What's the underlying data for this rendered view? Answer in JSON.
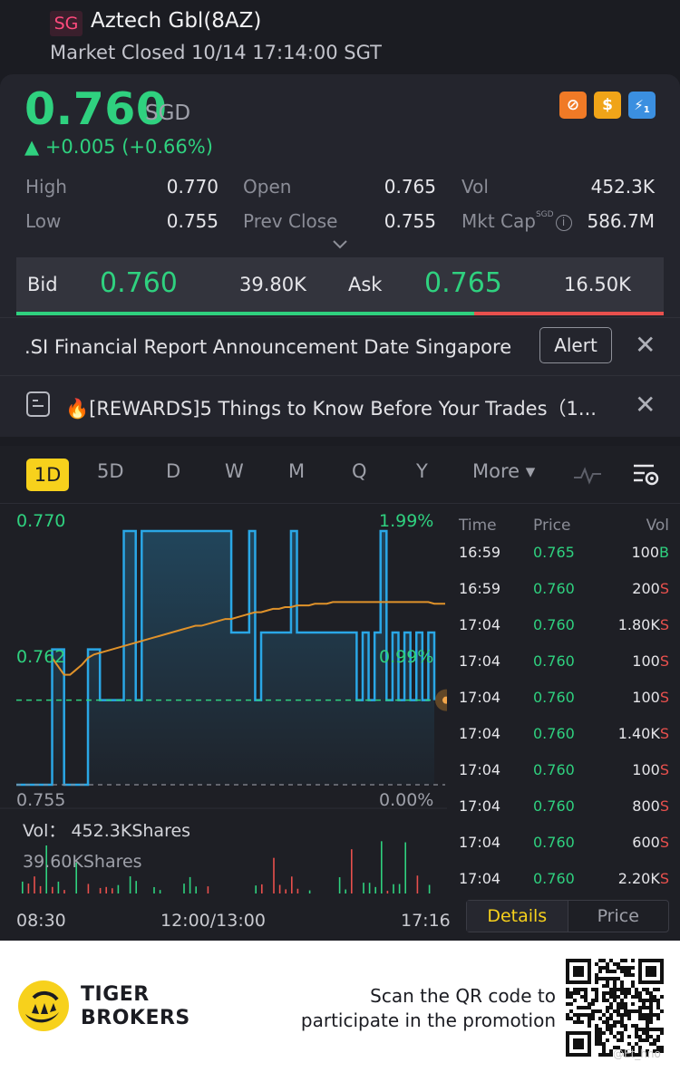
{
  "header": {
    "region_badge": "SG",
    "title": "Aztech Gbl(8AZ)",
    "status": "Market Closed 10/14 17:14:00 SGT"
  },
  "quote": {
    "price": "0.760",
    "currency": "SGD",
    "change": "▲ +0.005 (+0.66%)",
    "icons": [
      "no-short-icon",
      "dollar-icon",
      "lightning-icon"
    ],
    "icon_glyphs": [
      "⊘",
      "$",
      "⚡"
    ],
    "lightning_sub": "1",
    "stats": [
      {
        "label": "High",
        "value": "0.770"
      },
      {
        "label": "Open",
        "value": "0.765"
      },
      {
        "label": "Vol",
        "value": "452.3K"
      },
      {
        "label": "Low",
        "value": "0.755"
      },
      {
        "label": "Prev Close",
        "value": "0.755"
      },
      {
        "label": "Mkt Cap",
        "value": "586.7M"
      }
    ],
    "mktcap_sup": "SGD"
  },
  "bidask": {
    "bid_label": "Bid",
    "bid_price": "0.760",
    "bid_size": "39.80K",
    "ask_label": "Ask",
    "ask_price": "0.765",
    "ask_size": "16.50K",
    "bid_ratio": 0.71
  },
  "notices": {
    "report_text": ".SI Financial Report Announcement Date Singapore",
    "alert_label": "Alert",
    "close_glyph": "✕",
    "rewards_text": "🔥[REWARDS]5 Things to Know Before Your Trades（1..."
  },
  "chart_tabs": {
    "tabs": [
      "1D",
      "5D",
      "D",
      "W",
      "M",
      "Q",
      "Y"
    ],
    "active": "1D",
    "more_label": "More ▾"
  },
  "chart_data": {
    "type": "line",
    "ylim": [
      0.755,
      0.77
    ],
    "y_top_label": "0.770",
    "y_mid_label": "0.762",
    "y_bottom_label": "0.755",
    "pct_top_label": "1.99%",
    "pct_mid_label": "0.99%",
    "pct_bottom_label": "0.00%",
    "prev_close": 0.755,
    "last_price": 0.76,
    "x_labels": [
      "08:30",
      "12:00/13:00",
      "17:16"
    ],
    "series": [
      {
        "values": [
          0.755,
          0.755,
          0.755,
          0.755,
          0.755,
          0.755,
          0.763,
          0.763,
          0.755,
          0.755,
          0.755,
          0.755,
          0.763,
          0.763,
          0.76,
          0.76,
          0.76,
          0.76,
          0.77,
          0.77,
          0.76,
          0.77,
          0.77,
          0.77,
          0.77,
          0.77,
          0.77,
          0.77,
          0.77,
          0.77,
          0.77,
          0.77,
          0.77,
          0.77,
          0.77,
          0.77,
          0.764,
          0.764,
          0.764,
          0.77,
          0.76,
          0.764,
          0.764,
          0.764,
          0.764,
          0.764,
          0.77,
          0.764,
          0.764,
          0.764,
          0.764,
          0.764,
          0.764,
          0.764,
          0.764,
          0.764,
          0.764,
          0.76,
          0.764,
          0.76,
          0.764,
          0.77,
          0.76,
          0.764,
          0.76,
          0.764,
          0.76,
          0.764,
          0.76,
          0.764,
          0.76
        ]
      },
      {
        "values": [
          null,
          null,
          null,
          null,
          null,
          null,
          0.7625,
          0.762,
          0.7615,
          0.7615,
          0.7618,
          0.7621,
          0.7625,
          0.7627,
          0.7628,
          0.7629,
          0.763,
          0.7631,
          0.7632,
          0.7633,
          0.7634,
          0.7635,
          0.7636,
          0.7637,
          0.7638,
          0.7639,
          0.764,
          0.7641,
          0.7642,
          0.7643,
          0.7644,
          0.7644,
          0.7645,
          0.7646,
          0.7647,
          0.7648,
          0.7648,
          0.7649,
          0.765,
          0.7651,
          0.7652,
          0.7652,
          0.7653,
          0.7654,
          0.7654,
          0.7655,
          0.7655,
          0.7656,
          0.7656,
          0.7656,
          0.7657,
          0.7657,
          0.7657,
          0.7658,
          0.7658,
          0.7658,
          0.7658,
          0.7658,
          0.7658,
          0.7658,
          0.7658,
          0.7658,
          0.7658,
          0.7658,
          0.7658,
          0.7658,
          0.7658,
          0.7658,
          0.7658,
          0.7658,
          0.7657
        ]
      }
    ],
    "volume": {
      "title": "Vol：  452.3KShares",
      "max_label": "39.60KShares"
    }
  },
  "trades": {
    "headers": [
      "Time",
      "Price",
      "Vol"
    ],
    "rows": [
      {
        "time": "16:59",
        "price": "0.765",
        "vol": "100",
        "side": "B"
      },
      {
        "time": "16:59",
        "price": "0.760",
        "vol": "200",
        "side": "S"
      },
      {
        "time": "17:04",
        "price": "0.760",
        "vol": "1.80K",
        "side": "S"
      },
      {
        "time": "17:04",
        "price": "0.760",
        "vol": "100",
        "side": "S"
      },
      {
        "time": "17:04",
        "price": "0.760",
        "vol": "100",
        "side": "S"
      },
      {
        "time": "17:04",
        "price": "0.760",
        "vol": "1.40K",
        "side": "S"
      },
      {
        "time": "17:04",
        "price": "0.760",
        "vol": "100",
        "side": "S"
      },
      {
        "time": "17:04",
        "price": "0.760",
        "vol": "800",
        "side": "S"
      },
      {
        "time": "17:04",
        "price": "0.760",
        "vol": "600",
        "side": "S"
      },
      {
        "time": "17:04",
        "price": "0.760",
        "vol": "2.20K",
        "side": "S"
      }
    ],
    "tab_details": "Details",
    "tab_price": "Price"
  },
  "footer": {
    "brand_line1": "TIGER",
    "brand_line2": "BROKERS",
    "scan_line1": "Scan the QR code to",
    "scan_line2": "participate in the promotion",
    "watermark": "@Et_hno"
  },
  "colors": {
    "up": "#2fd17f",
    "down": "#e8504d",
    "accent": "#f7d11c",
    "price_line": "#2aa7e6",
    "avg_line": "#e0922a"
  }
}
